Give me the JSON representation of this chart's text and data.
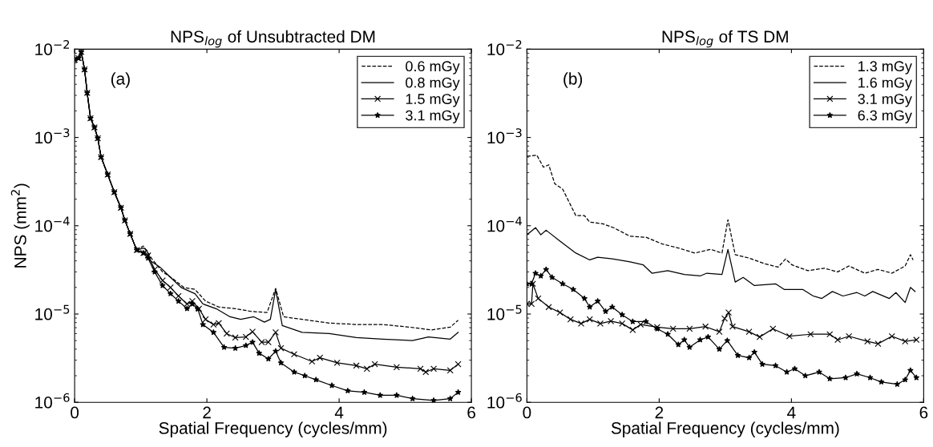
{
  "chart_data": [
    {
      "type": "line",
      "title": "NPS$_{log}$ of Unsubtracted DM",
      "xlabel": "Spatial Frequency (cycles/mm)",
      "ylabel": "NPS (mm$^{2}$)",
      "log": "y",
      "legend": "top right",
      "grid": false,
      "xlim": [
        0,
        6
      ],
      "xticks": [
        0,
        2,
        4,
        6
      ],
      "ylim": [
        1e-06,
        0.01
      ],
      "yticks": [
        {
          "value": 1e-06,
          "label": "10$^{−6}$"
        },
        {
          "value": 1e-05,
          "label": "10$^{−5}$"
        },
        {
          "value": 0.0001,
          "label": "10$^{−4}$"
        },
        {
          "value": 0.001,
          "label": "10$^{−3}$"
        },
        {
          "value": 0.01,
          "label": "10$^{−2}$"
        }
      ],
      "annotations": [
        "(a)"
      ],
      "series": [
        {
          "name": "0.6 mGy",
          "color": "#000000",
          "line_style": "dashed",
          "marker": "none",
          "x": [
            0,
            0.06,
            0.1,
            0.15,
            0.19,
            0.24,
            0.3,
            0.35,
            0.4,
            0.5,
            0.6,
            0.7,
            0.76,
            0.84,
            0.94,
            1.04,
            1.17,
            1.33,
            1.49,
            1.65,
            1.82,
            1.98,
            2.18,
            2.43,
            2.67,
            2.91,
            3.04,
            3.16,
            3.44,
            3.85,
            4.26,
            4.66,
            5.07,
            5.39,
            5.68,
            5.8
          ],
          "values": [
            0.0076,
            0.0079,
            0.0093,
            0.0059,
            0.0032,
            0.00165,
            0.0013,
            0.00098,
            0.0006,
            0.00038,
            0.00024,
            0.00016,
            0.000115,
            8.1e-05,
            5.3e-05,
            5.9e-05,
            4.2e-05,
            3e-05,
            2.5e-05,
            2e-05,
            1.9e-05,
            1.4e-05,
            1.2e-05,
            1.15e-05,
            1.07e-05,
            1.04e-05,
            1.95e-05,
            9.3e-06,
            8.7e-06,
            7.9e-06,
            7.6e-06,
            7.6e-06,
            7.1e-06,
            6.6e-06,
            7.1e-06,
            8.5e-06
          ]
        },
        {
          "name": "0.8 mGy",
          "color": "#000000",
          "line_style": "solid",
          "marker": "none",
          "x": [
            0,
            0.06,
            0.1,
            0.15,
            0.19,
            0.24,
            0.3,
            0.35,
            0.4,
            0.5,
            0.6,
            0.7,
            0.76,
            0.84,
            0.94,
            1.04,
            1.09,
            1.15,
            1.29,
            1.45,
            1.61,
            1.82,
            1.94,
            2.14,
            2.35,
            2.51,
            2.71,
            2.87,
            2.96,
            3.04,
            3.14,
            3.44,
            3.85,
            4.26,
            4.66,
            5.11,
            5.35,
            5.68,
            5.8
          ],
          "values": [
            0.0076,
            0.0079,
            0.0093,
            0.0059,
            0.0032,
            0.00165,
            0.0013,
            0.00098,
            0.0006,
            0.00038,
            0.00024,
            0.00016,
            0.000115,
            8.1e-05,
            5.3e-05,
            5.6e-05,
            5.3e-05,
            4e-05,
            3.4e-05,
            2.6e-05,
            2e-05,
            1.7e-05,
            1.3e-05,
            1.15e-05,
            9.3e-06,
            8.7e-06,
            9.3e-06,
            8.1e-06,
            8.7e-06,
            1.9e-05,
            7.4e-06,
            6.2e-06,
            6e-06,
            5.4e-06,
            5.2e-06,
            5e-06,
            5.5e-06,
            5.2e-06,
            6.2e-06
          ]
        },
        {
          "name": "1.5 mGy",
          "color": "#000000",
          "line_style": "solid",
          "marker": "cross",
          "x": [
            0,
            0.06,
            0.1,
            0.15,
            0.19,
            0.24,
            0.3,
            0.35,
            0.4,
            0.5,
            0.6,
            0.7,
            0.76,
            0.84,
            0.94,
            1.04,
            1.11,
            1.21,
            1.33,
            1.45,
            1.57,
            1.7,
            1.78,
            1.88,
            1.98,
            2.1,
            2.18,
            2.3,
            2.43,
            2.59,
            2.69,
            2.83,
            2.93,
            3.04,
            3.12,
            3.32,
            3.59,
            3.71,
            3.97,
            4.26,
            4.42,
            4.54,
            4.87,
            5.23,
            5.31,
            5.43,
            5.68,
            5.8
          ],
          "values": [
            0.0076,
            0.0079,
            0.0093,
            0.0059,
            0.0032,
            0.00165,
            0.0013,
            0.00098,
            0.0006,
            0.00038,
            0.00024,
            0.00016,
            0.000115,
            8.1e-05,
            5.3e-05,
            4.9e-05,
            4.6e-05,
            3.2e-05,
            2.4e-05,
            2e-05,
            1.6e-05,
            1.3e-05,
            1.4e-05,
            1.15e-05,
            8.7e-06,
            7.6e-06,
            7.9e-06,
            6e-06,
            5.4e-06,
            5.5e-06,
            6.3e-06,
            4.8e-06,
            4.8e-06,
            6.2e-06,
            4.1e-06,
            3.5e-06,
            2.9e-06,
            3.2e-06,
            2.8e-06,
            2.6e-06,
            2.4e-06,
            2.7e-06,
            2.5e-06,
            2.4e-06,
            2.2e-06,
            2.4e-06,
            2.3e-06,
            2.7e-06
          ]
        },
        {
          "name": "3.1 mGy",
          "color": "#000000",
          "line_style": "solid",
          "marker": "star",
          "x": [
            0,
            0.06,
            0.1,
            0.15,
            0.19,
            0.24,
            0.3,
            0.35,
            0.4,
            0.5,
            0.6,
            0.7,
            0.76,
            0.84,
            0.94,
            1.04,
            1.11,
            1.21,
            1.33,
            1.45,
            1.57,
            1.7,
            1.78,
            1.86,
            1.94,
            2.1,
            2.26,
            2.43,
            2.59,
            2.69,
            2.79,
            2.93,
            3.04,
            3.12,
            3.32,
            3.48,
            3.65,
            3.89,
            4.13,
            4.38,
            4.62,
            4.87,
            5.11,
            5.43,
            5.68,
            5.8
          ],
          "values": [
            0.0076,
            0.0079,
            0.0093,
            0.0059,
            0.0032,
            0.00165,
            0.0013,
            0.00098,
            0.0006,
            0.00038,
            0.00024,
            0.00016,
            0.000115,
            8.1e-05,
            5.3e-05,
            4.9e-05,
            4.3e-05,
            3e-05,
            2.1e-05,
            1.7e-05,
            1.4e-05,
            1.15e-05,
            1.3e-05,
            1.15e-05,
            7.6e-06,
            6.2e-06,
            4.2e-06,
            4.1e-06,
            4.4e-06,
            4.8e-06,
            3.6e-06,
            3.1e-06,
            3.8e-06,
            2.8e-06,
            2.2e-06,
            2e-06,
            1.8e-06,
            1.55e-06,
            1.35e-06,
            1.3e-06,
            1.2e-06,
            1.2e-06,
            1.1e-06,
            1.05e-06,
            1.1e-06,
            1.3e-06
          ]
        }
      ]
    },
    {
      "type": "line",
      "title": "NPS$_{log}$ of TS DM",
      "xlabel": "Spatial Frequency (cycles/mm)",
      "log": "y",
      "legend": "top right",
      "grid": false,
      "xlim": [
        0,
        6
      ],
      "xticks": [
        0,
        2,
        4,
        6
      ],
      "ylim": [
        1e-06,
        0.01
      ],
      "yticks": [
        {
          "value": 1e-06,
          "label": "10$^{−6}$"
        },
        {
          "value": 1e-05,
          "label": "10$^{−5}$"
        },
        {
          "value": 0.0001,
          "label": "10$^{−4}$"
        },
        {
          "value": 0.001,
          "label": "10$^{−3}$"
        },
        {
          "value": 0.01,
          "label": "10$^{−2}$"
        }
      ],
      "annotations": [
        "(b)"
      ],
      "series": [
        {
          "name": "1.3 mGy",
          "color": "#000000",
          "line_style": "dashed",
          "marker": "none",
          "x": [
            0,
            0.15,
            0.25,
            0.33,
            0.42,
            0.54,
            0.74,
            0.87,
            0.95,
            1.15,
            1.31,
            1.56,
            1.8,
            2.05,
            2.29,
            2.54,
            2.78,
            2.95,
            3.04,
            3.15,
            3.36,
            3.6,
            3.8,
            3.91,
            4.01,
            4.25,
            4.5,
            4.7,
            4.87,
            5.11,
            5.31,
            5.52,
            5.72,
            5.8,
            5.84
          ],
          "values": [
            0.00061,
            0.00063,
            0.00046,
            0.00049,
            0.0003,
            0.00026,
            0.00013,
            0.00013,
            0.00011,
            0.000105,
            9.5e-05,
            7.6e-05,
            7.4e-05,
            6.2e-05,
            5.6e-05,
            4.9e-05,
            5.4e-05,
            4.9e-05,
            0.000117,
            4.7e-05,
            4.3e-05,
            3.7e-05,
            3.4e-05,
            4.2e-05,
            3.6e-05,
            3.1e-05,
            3.3e-05,
            3e-05,
            3.5e-05,
            2.9e-05,
            3.2e-05,
            2.9e-05,
            3.5e-05,
            4.7e-05,
            4.1e-05
          ]
        },
        {
          "name": "1.6 mGy",
          "color": "#000000",
          "line_style": "solid",
          "marker": "none",
          "x": [
            0,
            0.13,
            0.21,
            0.29,
            0.5,
            0.74,
            0.95,
            1.07,
            1.31,
            1.56,
            1.76,
            1.89,
            2.13,
            2.38,
            2.62,
            2.72,
            2.95,
            3.04,
            3.15,
            3.27,
            3.44,
            3.76,
            3.89,
            4.17,
            4.33,
            4.46,
            4.62,
            4.78,
            4.99,
            5.11,
            5.23,
            5.48,
            5.58,
            5.72,
            5.8,
            5.87
          ],
          "values": [
            7.9e-05,
            9.5e-05,
            7.9e-05,
            8.9e-05,
            6.7e-05,
            4.9e-05,
            4.1e-05,
            4.4e-05,
            4.2e-05,
            3.9e-05,
            3.6e-05,
            2.9e-05,
            3.1e-05,
            2.8e-05,
            2.7e-05,
            2.9e-05,
            2.8e-05,
            5.4e-05,
            2.3e-05,
            2.6e-05,
            2.1e-05,
            2.2e-05,
            1.9e-05,
            1.9e-05,
            1.6e-05,
            1.5e-05,
            1.8e-05,
            1.6e-05,
            1.75e-05,
            1.6e-05,
            1.8e-05,
            1.5e-05,
            1.75e-05,
            1.35e-05,
            2e-05,
            1.8e-05
          ]
        },
        {
          "name": "3.1 mGy",
          "color": "#000000",
          "line_style": "solid",
          "marker": "cross",
          "x": [
            0,
            0.07,
            0.09,
            0.17,
            0.33,
            0.5,
            0.66,
            0.82,
            0.95,
            1.11,
            1.27,
            1.44,
            1.6,
            1.72,
            1.97,
            2.21,
            2.46,
            2.7,
            2.91,
            2.99,
            3.05,
            3.11,
            3.36,
            3.52,
            3.72,
            3.97,
            4.29,
            4.58,
            4.7,
            4.87,
            5.15,
            5.31,
            5.52,
            5.72,
            5.89
          ],
          "values": [
            1.3e-05,
            1.3e-05,
            2.2e-05,
            1.5e-05,
            1.2e-05,
            1.04e-05,
            8.7e-06,
            7.8e-06,
            8.7e-06,
            7.8e-06,
            8.3e-06,
            7.8e-06,
            6.6e-06,
            7.6e-06,
            7.1e-06,
            6.8e-06,
            6.8e-06,
            7.2e-06,
            6.3e-06,
            8.9e-06,
            1.04e-05,
            7.2e-06,
            6.3e-06,
            5.5e-06,
            6.8e-06,
            5.6e-06,
            5.9e-06,
            5.9e-06,
            5.1e-06,
            5.6e-06,
            4.9e-06,
            4.6e-06,
            5.6e-06,
            4.9e-06,
            5.1e-06
          ]
        },
        {
          "name": "6.3 mGy",
          "color": "#000000",
          "line_style": "solid",
          "marker": "star",
          "x": [
            0,
            0.07,
            0.13,
            0.21,
            0.29,
            0.38,
            0.54,
            0.7,
            0.87,
            0.95,
            1.07,
            1.19,
            1.29,
            1.44,
            1.6,
            1.8,
            1.97,
            2.13,
            2.29,
            2.38,
            2.46,
            2.62,
            2.74,
            2.91,
            3.03,
            3.19,
            3.36,
            3.44,
            3.56,
            3.76,
            3.93,
            4.05,
            4.21,
            4.42,
            4.58,
            4.82,
            4.99,
            5.19,
            5.36,
            5.6,
            5.72,
            5.8,
            5.89
          ],
          "values": [
            2.2e-05,
            2.2e-05,
            2.9e-05,
            2.7e-05,
            3.2e-05,
            2.6e-05,
            2.2e-05,
            1.9e-05,
            1.5e-05,
            1.2e-05,
            1.4e-05,
            1.07e-05,
            1.2e-05,
            9.8e-06,
            8.2e-06,
            8.2e-06,
            6.8e-06,
            5.9e-06,
            4.5e-06,
            5.1e-06,
            4.2e-06,
            5.1e-06,
            5.5e-06,
            4e-06,
            5e-06,
            3.4e-06,
            3.2e-06,
            3.7e-06,
            2.7e-06,
            2.6e-06,
            2.2e-06,
            2.4e-06,
            2e-06,
            2.2e-06,
            1.85e-06,
            1.9e-06,
            2.1e-06,
            1.9e-06,
            1.7e-06,
            1.6e-06,
            1.8e-06,
            2.3e-06,
            1.9e-06
          ]
        }
      ]
    }
  ]
}
